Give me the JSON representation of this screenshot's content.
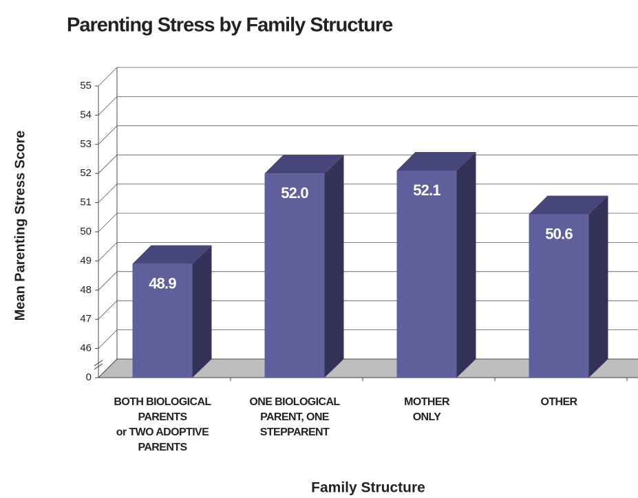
{
  "chart_data": {
    "type": "bar3d",
    "title": "Parenting Stress by Family Structure",
    "ylabel": "Mean Parenting Stress Score",
    "xlabel": "Family Structure",
    "categories": [
      [
        "BOTH BIOLOGICAL",
        "PARENTS",
        "or TWO ADOPTIVE",
        "PARENTS"
      ],
      [
        "ONE BIOLOGICAL",
        "PARENT, ONE",
        "STEPPARENT"
      ],
      [
        "MOTHER",
        "ONLY"
      ],
      [
        "OTHER"
      ]
    ],
    "values": [
      48.9,
      52.0,
      52.1,
      50.6
    ],
    "value_labels": [
      "48.9",
      "52.0",
      "52.1",
      "50.6"
    ],
    "color": "#5f5f9c",
    "ylim": [
      0,
      55
    ],
    "yticks": [
      0,
      46,
      47,
      48,
      49,
      50,
      51,
      52,
      53,
      54,
      55
    ],
    "axis_break": true,
    "grid": true
  }
}
